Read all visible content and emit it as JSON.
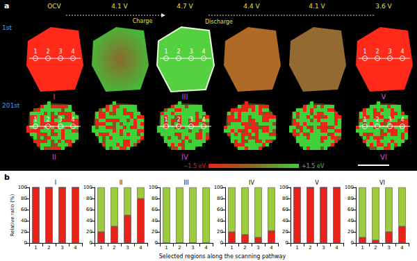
{
  "panel_a": {
    "label": "a",
    "rows": [
      "1st",
      "201st"
    ],
    "voltages": [
      "OCV",
      "4.1 V",
      "4.7 V",
      "4.4 V",
      "4.1 V",
      "3.6 V"
    ],
    "charge": "Charge",
    "discharge": "Discharge",
    "particle_labels": [
      [
        "I",
        "III",
        "V"
      ],
      [
        "II",
        "IV",
        "VI"
      ]
    ],
    "points": [
      "1",
      "2",
      "3",
      "4"
    ],
    "colorbar": {
      "range": [
        -1.5,
        1.5
      ],
      "labels": [
        "−1.5 eV",
        "+1.5 eV"
      ]
    }
  },
  "panel_b": {
    "label": "b",
    "ylabel": "Relative ratio (%)",
    "xlabel": "Selected regions along the scanning pathway"
  },
  "chart_data": [
    {
      "type": "bar",
      "title": "I",
      "stacked": true,
      "categories": [
        "1",
        "2",
        "3",
        "4"
      ],
      "ylim": [
        0,
        100
      ],
      "yticks": [
        0,
        20,
        40,
        60,
        80,
        100
      ],
      "series": [
        {
          "color": "#e8241a",
          "values": [
            100,
            100,
            100,
            100
          ]
        },
        {
          "color": "#9ccc3c",
          "values": [
            0,
            0,
            0,
            0
          ]
        }
      ]
    },
    {
      "type": "bar",
      "title": "II",
      "stacked": true,
      "categories": [
        "1",
        "2",
        "3",
        "4"
      ],
      "ylim": [
        0,
        100
      ],
      "yticks": [
        0,
        20,
        40,
        60,
        80,
        100
      ],
      "series": [
        {
          "color": "#e8241a",
          "values": [
            20,
            30,
            50,
            80
          ]
        },
        {
          "color": "#9ccc3c",
          "values": [
            80,
            70,
            50,
            20
          ]
        }
      ]
    },
    {
      "type": "bar",
      "title": "III",
      "stacked": true,
      "categories": [
        "1",
        "2",
        "3",
        "4"
      ],
      "ylim": [
        0,
        100
      ],
      "yticks": [
        0,
        20,
        40,
        60,
        80,
        100
      ],
      "series": [
        {
          "color": "#e8241a",
          "values": [
            0,
            0,
            0,
            0
          ]
        },
        {
          "color": "#9ccc3c",
          "values": [
            100,
            100,
            100,
            100
          ]
        }
      ]
    },
    {
      "type": "bar",
      "title": "IV",
      "stacked": true,
      "categories": [
        "1",
        "2",
        "3",
        "4"
      ],
      "ylim": [
        0,
        100
      ],
      "yticks": [
        0,
        20,
        40,
        60,
        80,
        100
      ],
      "series": [
        {
          "color": "#e8241a",
          "values": [
            20,
            15,
            10,
            22
          ]
        },
        {
          "color": "#9ccc3c",
          "values": [
            80,
            85,
            90,
            78
          ]
        }
      ]
    },
    {
      "type": "bar",
      "title": "V",
      "stacked": true,
      "categories": [
        "1",
        "2",
        "3",
        "4"
      ],
      "ylim": [
        0,
        100
      ],
      "yticks": [
        0,
        20,
        40,
        60,
        80,
        100
      ],
      "series": [
        {
          "color": "#e8241a",
          "values": [
            100,
            100,
            100,
            100
          ]
        },
        {
          "color": "#9ccc3c",
          "values": [
            0,
            0,
            0,
            0
          ]
        }
      ]
    },
    {
      "type": "bar",
      "title": "VI",
      "stacked": true,
      "categories": [
        "1",
        "2",
        "3",
        "4"
      ],
      "ylim": [
        0,
        100
      ],
      "yticks": [
        0,
        20,
        40,
        60,
        80,
        100
      ],
      "series": [
        {
          "color": "#e8241a",
          "values": [
            10,
            5,
            20,
            30
          ]
        },
        {
          "color": "#9ccc3c",
          "values": [
            90,
            95,
            80,
            70
          ]
        }
      ]
    }
  ]
}
